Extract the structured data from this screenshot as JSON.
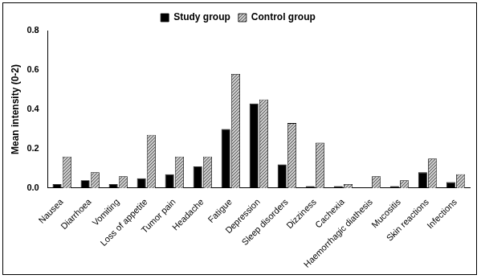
{
  "chart_data": {
    "type": "bar",
    "y_label": "Mean intensity (0-2)",
    "categories": [
      "Nausea",
      "Diarrhoea",
      "Vomiting",
      "Loss of appetite",
      "Tumor pain",
      "Headache",
      "Fatigue",
      "Depression",
      "Sleep disorders",
      "Dizziness",
      "Cachexia",
      "Haemorrhagic diathesis",
      "Mucositis",
      "Skin reactions",
      "Infections"
    ],
    "series": [
      {
        "name": "Study group",
        "color": "#000000",
        "values": [
          0.02,
          0.04,
          0.02,
          0.05,
          0.07,
          0.11,
          0.3,
          0.43,
          0.12,
          0.01,
          0.01,
          0.0,
          0.01,
          0.08,
          0.03
        ]
      },
      {
        "name": "Control group",
        "color": "#c8c8c8",
        "values": [
          0.16,
          0.08,
          0.06,
          0.27,
          0.16,
          0.16,
          0.58,
          0.45,
          0.33,
          0.23,
          0.02,
          0.06,
          0.04,
          0.15,
          0.07
        ]
      }
    ],
    "ylim": [
      0,
      0.8
    ],
    "yticks": [
      {
        "value": 0,
        "label": "0.0"
      },
      0.2,
      0.4,
      0.6,
      0.8
    ],
    "grid": false,
    "legend": "top"
  }
}
